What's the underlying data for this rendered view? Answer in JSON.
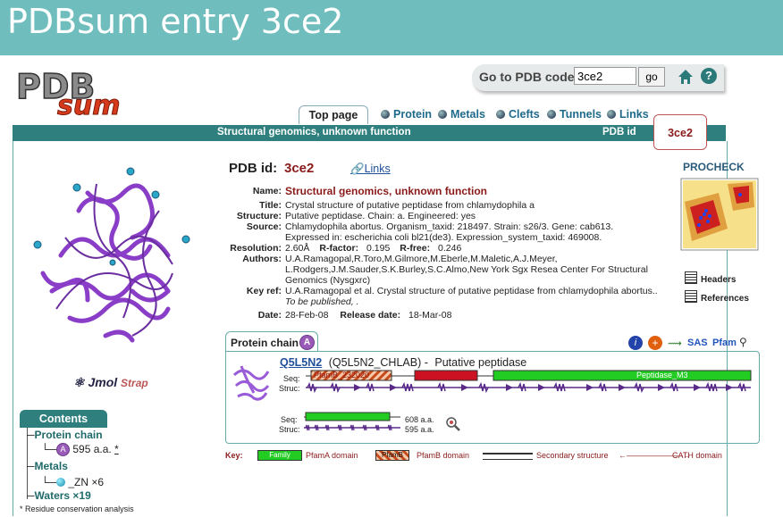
{
  "banner": {
    "title": "PDBsum entry 3ce2"
  },
  "logo": {
    "text": "PDBsum"
  },
  "goto": {
    "label": "Go to PDB code:",
    "value": "3ce2",
    "button": "go",
    "help": "?"
  },
  "nav": {
    "active_tab": "Top page",
    "links": [
      "Protein",
      "Metals",
      "Clefts",
      "Tunnels",
      "Links"
    ]
  },
  "header_bar": {
    "title": "Structural genomics, unknown function",
    "pdb_id_label": "PDB id",
    "pdb_id": "3ce2"
  },
  "entry": {
    "pdb_id_label": "PDB id:",
    "pdb_id": "3ce2",
    "links_label": "Links",
    "name_label": "Name:",
    "name": "Structural genomics, unknown function",
    "title_label": "Title:",
    "title": "Crystal structure of putative peptidase from chlamydophila a",
    "structure_label": "Structure:",
    "structure": "Putative peptidase. Chain: a. Engineered: yes",
    "source_label": "Source:",
    "source_lines": [
      "Chlamydophila abortus. Organism_taxid: 218497. Strain: s26/3. Gene: cab613.",
      "Expressed in: escherichia coli bl21(de3). Expression_system_taxid: 469008."
    ],
    "resolution_label": "Resolution:",
    "resolution": "2.60Å",
    "rfactor_label": "R-factor:",
    "rfactor": "0.195",
    "rfree_label": "R-free:",
    "rfree": "0.246",
    "authors_label": "Authors:",
    "authors_lines": [
      "U.A.Ramagopal,R.Toro,M.Gilmore,M.Eberle,M.Maletic,A.J.Meyer,",
      "L.Rodgers,J.M.Sauder,S.K.Burley,S.C.Almo,New York Sgx Resea Center For Structural",
      "Genomics (Nysgxrc)"
    ],
    "keyref_label": "Key ref:",
    "keyref": "U.A.Ramagopal et al. Crystal structure of putative peptidase from chlamydophila abortus..",
    "keyref_note": "To be published, .",
    "date_label": "Date:",
    "date": "28-Feb-08",
    "release_label": "Release date:",
    "release": "18-Mar-08"
  },
  "procheck": {
    "title": "PROCHECK",
    "headers": "Headers",
    "references": "References"
  },
  "viewer": {
    "jmol": "Jmol",
    "strap": "Strap"
  },
  "protein_chain": {
    "tab_label": "Protein chain",
    "chain": "A",
    "uniprot_acc": "Q5L5N2",
    "uniprot_name": "(Q5L5N2_CHLAB) -",
    "description": "Putative peptidase",
    "seq_label": "Seq:",
    "struc_label": "Struc:",
    "domain1": "PfamB_232020",
    "domain2": "Peptidase_M3",
    "seq_len": "608 a.a.",
    "struc_len": "595 a.a.",
    "tools": [
      "SAS",
      "Pfam"
    ]
  },
  "contents": {
    "title": "Contents",
    "protein_chain": "Protein chain",
    "chain_badge": "A",
    "chain_len": "595 a.a.",
    "chain_star": "*",
    "metals": "Metals",
    "metal_item": "_ZN ×6",
    "waters": "Waters ×19",
    "footnote": "* Residue conservation analysis"
  },
  "key": {
    "label": "Key:",
    "family": "Family",
    "pfama": "PfamA domain",
    "pfamb_box": "PfamB",
    "pfamb": "PfamB domain",
    "secondary": "Secondary structure",
    "cath": "CATH domain"
  },
  "colors": {
    "teal": "#2e7f7e",
    "banner": "#6fbdbd",
    "darkred": "#8b1a1a",
    "green": "#22cc22",
    "red": "#cc1122"
  }
}
